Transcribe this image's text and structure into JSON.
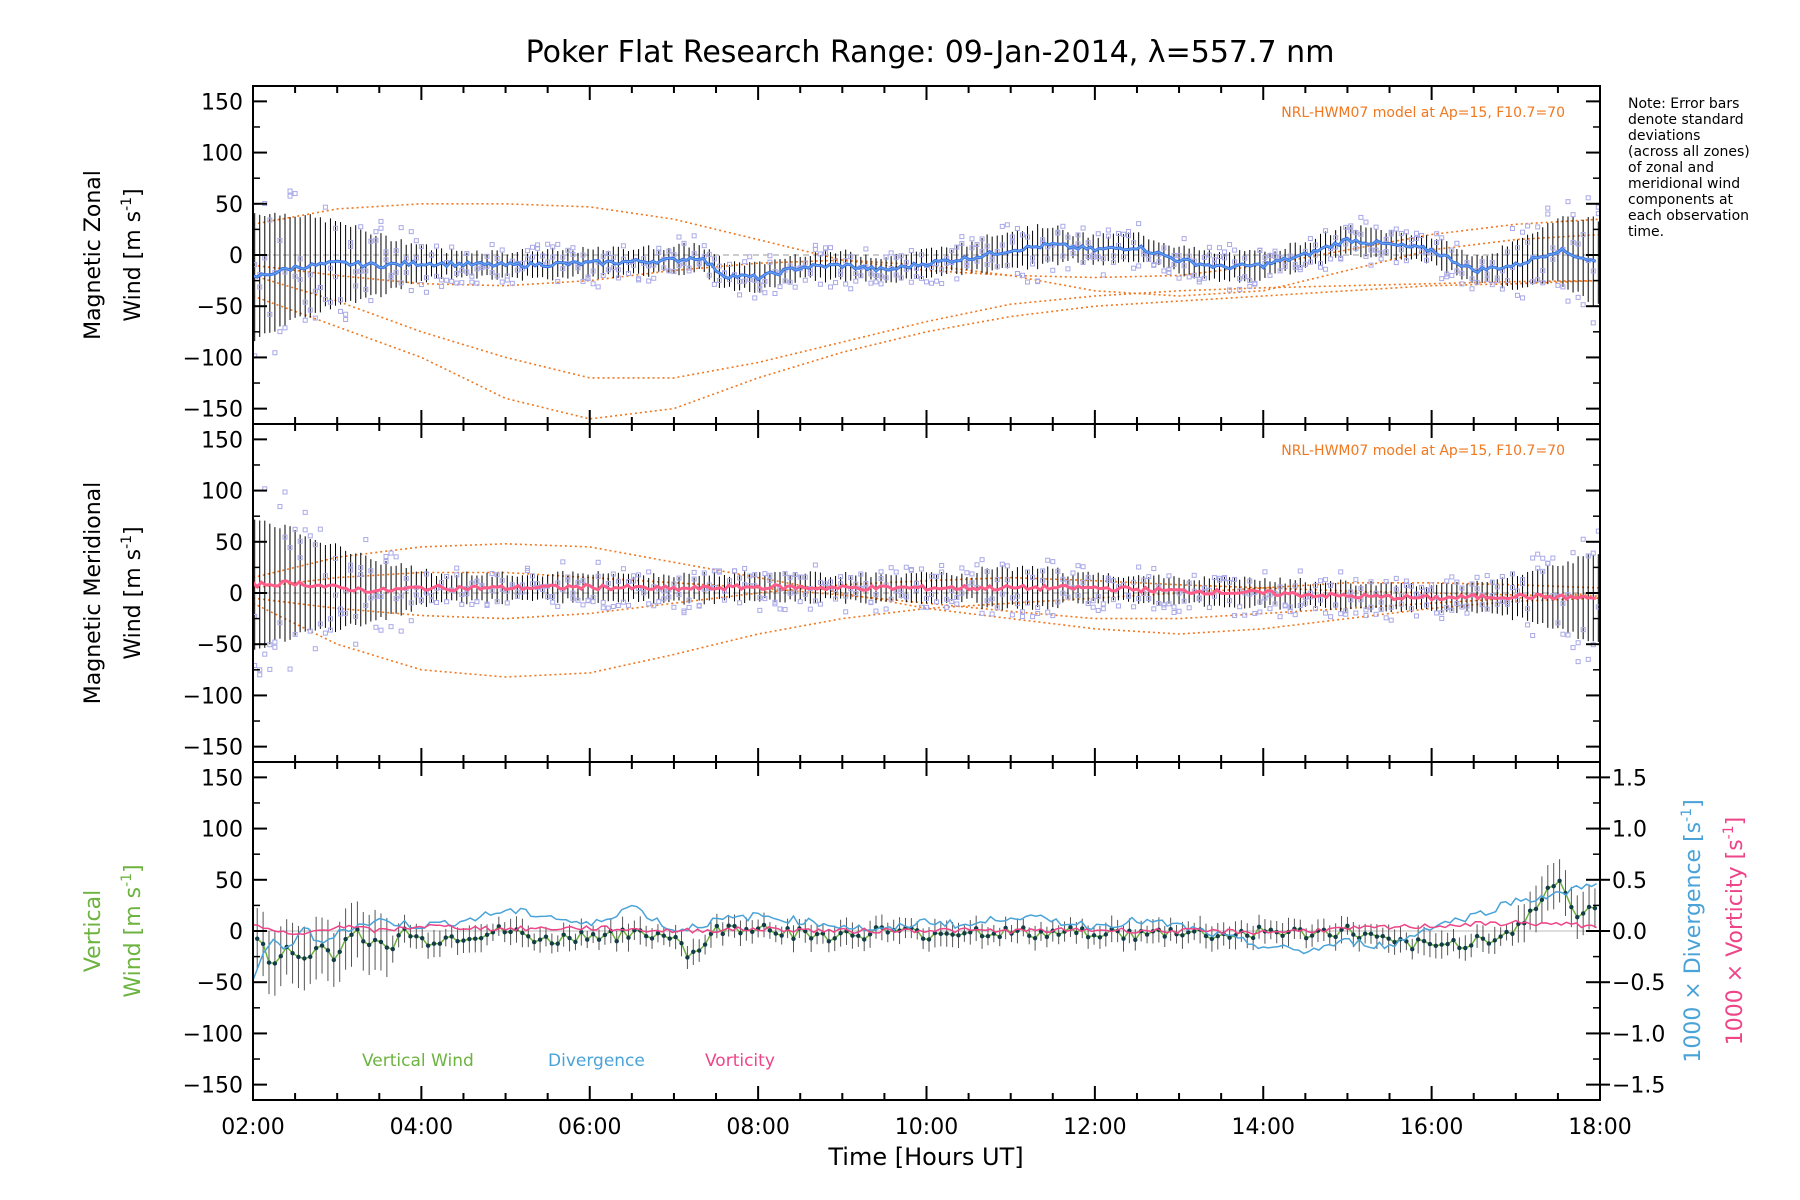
{
  "title": "Poker Flat Research Range: 09-Jan-2014, λ=557.7 nm",
  "note_lines": [
    "Note: Error bars",
    "denote standard",
    "deviations",
    "(across all zones)",
    "of zonal and",
    "meridional wind",
    "components at",
    "each observation",
    "time."
  ],
  "colors": {
    "zonal": "#3a6fe8",
    "zonal_light": "#6fb2e6",
    "meridional": "#ff5c8a",
    "model": "#f07820",
    "samples": "#a9a9e8",
    "vertical": "#6db33f",
    "divergence": "#4aa3d8",
    "vorticity": "#ee4488",
    "points": "#123c46",
    "errorbar": "#000000"
  },
  "chart_data": [
    {
      "type": "line",
      "panel": "zonal",
      "ylabel_line1": "Magnetic Zonal",
      "ylabel_line2": "Wind [m s",
      "ylabel_sup": "-1",
      "ylabel_end": "]",
      "model_label": "NRL-HWM07 model at Ap=15, F10.7=70",
      "ylim": [
        -165,
        165
      ],
      "xlim": [
        2.0,
        18.0
      ],
      "yticks": [
        -150,
        -100,
        -50,
        0,
        50,
        100,
        150
      ],
      "ytick_labels": [
        "−150",
        "−100",
        "−50",
        "0",
        "50",
        "100",
        "150"
      ],
      "series": [
        {
          "x": [
            2.0,
            2.5,
            3.0,
            3.5,
            4.0,
            5.0,
            6.0,
            7.0,
            7.3,
            7.6,
            8.0,
            8.5,
            9.0,
            9.5,
            10.0,
            10.5,
            11.0,
            11.5,
            12.0,
            12.5,
            13.0,
            13.5,
            14.0,
            14.5,
            15.0,
            15.5,
            16.0,
            16.5,
            17.0,
            17.5,
            18.0
          ],
          "y": [
            -22,
            -12,
            -8,
            -10,
            -8,
            -10,
            -8,
            -5,
            -2,
            -20,
            -22,
            -12,
            -10,
            -15,
            -8,
            -3,
            5,
            10,
            5,
            8,
            -5,
            -12,
            -10,
            0,
            15,
            10,
            5,
            -15,
            -10,
            5,
            -8
          ]
        }
      ],
      "model_curves": [
        {
          "x": [
            2,
            3,
            4,
            5,
            6,
            7,
            8,
            9,
            10,
            11,
            12,
            13,
            14,
            15,
            16,
            17,
            18
          ],
          "y": [
            -40,
            -70,
            -100,
            -140,
            -160,
            -150,
            -120,
            -95,
            -75,
            -60,
            -50,
            -45,
            -40,
            -35,
            -30,
            -28,
            -25
          ]
        },
        {
          "x": [
            2,
            3,
            4,
            5,
            6,
            7,
            8,
            9,
            10,
            11,
            12,
            13,
            14,
            15,
            16,
            17,
            18
          ],
          "y": [
            -20,
            -45,
            -75,
            -100,
            -120,
            -120,
            -105,
            -85,
            -65,
            -48,
            -40,
            -35,
            -32,
            -30,
            -28,
            -26,
            -25
          ]
        },
        {
          "x": [
            2,
            3,
            4,
            5,
            6,
            7,
            8,
            9,
            10,
            11,
            12,
            13,
            14,
            15,
            16,
            17,
            18
          ],
          "y": [
            30,
            45,
            50,
            50,
            47,
            35,
            15,
            -5,
            -15,
            -20,
            -22,
            -20,
            -10,
            5,
            20,
            30,
            35
          ]
        },
        {
          "x": [
            2,
            3,
            4,
            5,
            6,
            7,
            8,
            9,
            10,
            11,
            12,
            13,
            14,
            15,
            16,
            17,
            18
          ],
          "y": [
            -10,
            -20,
            -28,
            -30,
            -25,
            -15,
            -8,
            -5,
            -10,
            -20,
            -35,
            -40,
            -35,
            -15,
            5,
            15,
            20
          ]
        }
      ]
    },
    {
      "type": "line",
      "panel": "meridional",
      "ylabel_line1": "Magnetic Meridional",
      "ylabel_line2": "Wind [m s",
      "ylabel_sup": "-1",
      "ylabel_end": "]",
      "model_label": "NRL-HWM07 model at Ap=15, F10.7=70",
      "ylim": [
        -165,
        165
      ],
      "xlim": [
        2.0,
        18.0
      ],
      "yticks": [
        -150,
        -100,
        -50,
        0,
        50,
        100,
        150
      ],
      "ytick_labels": [
        "−150",
        "−100",
        "−50",
        "0",
        "50",
        "100",
        "150"
      ],
      "series": [
        {
          "x": [
            2.0,
            2.5,
            3.0,
            3.5,
            4.0,
            5.0,
            6.0,
            7.0,
            8.0,
            9.0,
            10.0,
            11.0,
            12.0,
            13.0,
            14.0,
            15.0,
            16.0,
            17.0,
            18.0
          ],
          "y": [
            8,
            10,
            5,
            2,
            5,
            5,
            6,
            4,
            6,
            5,
            5,
            5,
            5,
            2,
            0,
            -3,
            -5,
            -3,
            -5
          ]
        }
      ],
      "model_curves": [
        {
          "x": [
            2,
            3,
            4,
            5,
            6,
            7,
            8,
            9,
            10,
            11,
            12,
            13,
            14,
            15,
            16,
            17,
            18
          ],
          "y": [
            -10,
            -50,
            -75,
            -82,
            -78,
            -60,
            -40,
            -25,
            -15,
            -10,
            -5,
            0,
            5,
            10,
            10,
            8,
            5
          ]
        },
        {
          "x": [
            2,
            3,
            4,
            5,
            6,
            7,
            8,
            9,
            10,
            11,
            12,
            13,
            14,
            15,
            16,
            17,
            18
          ],
          "y": [
            15,
            35,
            45,
            48,
            45,
            30,
            15,
            0,
            -15,
            -25,
            -35,
            -40,
            -35,
            -25,
            -15,
            -8,
            -5
          ]
        },
        {
          "x": [
            2,
            3,
            4,
            5,
            6,
            7,
            8,
            9,
            10,
            11,
            12,
            13,
            14,
            15,
            16,
            17,
            18
          ],
          "y": [
            5,
            15,
            20,
            20,
            15,
            10,
            5,
            -2,
            -10,
            -18,
            -25,
            -25,
            -20,
            -15,
            -10,
            -5,
            0
          ]
        },
        {
          "x": [
            2,
            3,
            4,
            5,
            6,
            7,
            8,
            9,
            10,
            11,
            12,
            13,
            14,
            15,
            16,
            17,
            18
          ],
          "y": [
            -5,
            -15,
            -22,
            -25,
            -20,
            -10,
            0,
            8,
            12,
            15,
            12,
            8,
            5,
            2,
            0,
            -2,
            -3
          ]
        }
      ]
    },
    {
      "type": "line",
      "panel": "vertical",
      "ylabel_line1": "Vertical",
      "ylabel_line2": "Wind [m s",
      "ylabel_sup": "-1",
      "ylabel_end": "]",
      "ylim": [
        -165,
        165
      ],
      "xlim": [
        2.0,
        18.0
      ],
      "yticks": [
        -150,
        -100,
        -50,
        0,
        50,
        100,
        150
      ],
      "ytick_labels": [
        "−150",
        "−100",
        "−50",
        "0",
        "50",
        "100",
        "150"
      ],
      "y2lim": [
        -1.65,
        1.65
      ],
      "y2ticks": [
        -1.5,
        -1.0,
        -0.5,
        0.0,
        0.5,
        1.0,
        1.5
      ],
      "y2tick_labels": [
        "−1.5",
        "−1.0",
        "−0.5",
        "0.0",
        "0.5",
        "1.0",
        "1.5"
      ],
      "y2label_div": "1000 × Divergence [s",
      "y2label_vort": "1000 × Vorticity [s",
      "y2label_sup": "-1",
      "y2label_end": "]",
      "legend": [
        "Vertical Wind",
        "Divergence",
        "Vorticity"
      ],
      "xtick_labels": [
        "02:00",
        "04:00",
        "06:00",
        "08:00",
        "10:00",
        "12:00",
        "14:00",
        "16:00",
        "18:00"
      ],
      "xticks": [
        2,
        4,
        6,
        8,
        10,
        12,
        14,
        16,
        18
      ],
      "xlabel": "Time [Hours UT]",
      "series": [
        {
          "name": "Vertical Wind",
          "x": [
            2.0,
            2.2,
            2.4,
            2.6,
            2.8,
            3.0,
            3.2,
            3.4,
            3.6,
            3.8,
            4.0,
            4.5,
            5.0,
            5.5,
            6.0,
            6.5,
            7.0,
            7.2,
            7.5,
            8.0,
            8.5,
            9.0,
            9.5,
            10.0,
            10.5,
            11.0,
            11.5,
            12.0,
            12.5,
            13.0,
            13.5,
            14.0,
            14.5,
            15.0,
            15.5,
            16.0,
            16.5,
            17.0,
            17.3,
            17.5,
            17.7,
            18.0
          ],
          "y": [
            0,
            -30,
            -20,
            -28,
            -15,
            -25,
            5,
            -12,
            -18,
            0,
            -10,
            -5,
            0,
            -10,
            -3,
            -5,
            -3,
            -25,
            0,
            5,
            -3,
            -5,
            0,
            -3,
            0,
            -2,
            -3,
            0,
            -5,
            0,
            -5,
            0,
            -3,
            0,
            -12,
            -15,
            -10,
            0,
            30,
            55,
            15,
            20
          ]
        },
        {
          "name": "Divergence",
          "x": [
            2.0,
            2.2,
            2.4,
            2.6,
            2.8,
            3.0,
            3.5,
            4.0,
            4.5,
            5.0,
            5.5,
            6.0,
            6.5,
            7.0,
            7.5,
            8.0,
            8.5,
            9.0,
            9.5,
            10.0,
            10.5,
            11.0,
            11.5,
            12.0,
            12.5,
            13.0,
            13.5,
            14.0,
            14.5,
            15.0,
            15.5,
            16.0,
            16.5,
            17.0,
            17.5,
            18.0
          ],
          "y": [
            -0.45,
            -0.1,
            -0.2,
            0.05,
            -0.15,
            0.0,
            0.1,
            0.05,
            0.1,
            0.2,
            0.15,
            0.05,
            0.25,
            0.0,
            0.1,
            0.15,
            0.1,
            0.05,
            0.0,
            0.1,
            0.05,
            0.15,
            0.1,
            0.05,
            0.1,
            0.05,
            -0.05,
            -0.15,
            -0.2,
            -0.1,
            -0.15,
            0.05,
            0.15,
            0.3,
            0.35,
            0.5
          ]
        },
        {
          "name": "Vorticity",
          "x": [
            2.0,
            2.5,
            3.0,
            3.5,
            4.0,
            5.0,
            6.0,
            7.0,
            8.0,
            9.0,
            10.0,
            11.0,
            12.0,
            13.0,
            14.0,
            15.0,
            16.0,
            17.0,
            18.0
          ],
          "y": [
            0.05,
            -0.05,
            0.05,
            0.0,
            0.05,
            0.02,
            0.03,
            0.0,
            0.02,
            0.0,
            0.01,
            0.0,
            0.01,
            0.0,
            -0.01,
            0.02,
            0.05,
            0.08,
            0.05
          ]
        }
      ]
    }
  ]
}
